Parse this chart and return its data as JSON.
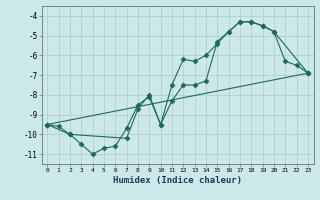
{
  "title": "",
  "xlabel": "Humidex (Indice chaleur)",
  "ylabel": "",
  "bg_color": "#cce8e8",
  "grid_color": "#aacece",
  "line_color": "#1a6a5a",
  "xlim": [
    -0.5,
    23.5
  ],
  "ylim": [
    -11.5,
    -3.5
  ],
  "xticks": [
    0,
    1,
    2,
    3,
    4,
    5,
    6,
    7,
    8,
    9,
    10,
    11,
    12,
    13,
    14,
    15,
    16,
    17,
    18,
    19,
    20,
    21,
    22,
    23
  ],
  "yticks": [
    -11,
    -10,
    -9,
    -8,
    -7,
    -6,
    -5,
    -4
  ],
  "curve1_x": [
    0,
    1,
    2,
    3,
    4,
    5,
    6,
    7,
    8,
    9,
    10,
    11,
    12,
    13,
    14,
    15,
    16,
    17,
    18,
    19,
    20,
    21,
    22,
    23
  ],
  "curve1_y": [
    -9.5,
    -9.6,
    -10.0,
    -10.5,
    -11.0,
    -10.7,
    -10.6,
    -9.7,
    -8.5,
    -8.1,
    -9.5,
    -7.5,
    -6.2,
    -6.3,
    -6.0,
    -5.4,
    -4.8,
    -4.3,
    -4.3,
    -4.5,
    -4.8,
    -6.3,
    -6.5,
    -6.9
  ],
  "curve2_x": [
    0,
    2,
    7,
    8,
    9,
    10,
    11,
    12,
    13,
    14,
    15,
    16,
    17,
    18,
    19,
    20,
    23
  ],
  "curve2_y": [
    -9.5,
    -10.0,
    -10.2,
    -8.7,
    -8.0,
    -9.5,
    -8.3,
    -7.5,
    -7.5,
    -7.3,
    -5.3,
    -4.8,
    -4.3,
    -4.3,
    -4.5,
    -4.8,
    -6.9
  ],
  "curve3_x": [
    0,
    23
  ],
  "curve3_y": [
    -9.5,
    -6.9
  ]
}
